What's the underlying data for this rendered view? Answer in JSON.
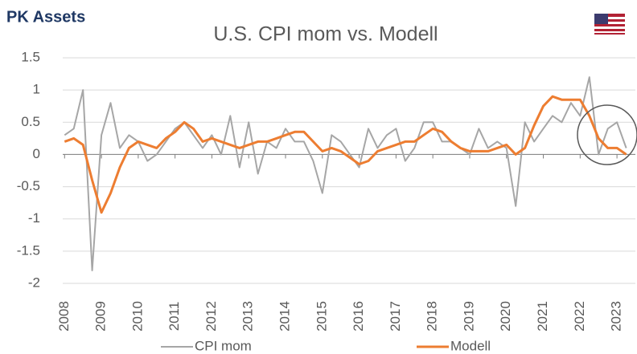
{
  "brand": "PK Assets",
  "chart_data": {
    "type": "line",
    "title": "U.S. CPI mom  vs.  Modell",
    "x": [
      2008,
      2008.25,
      2008.5,
      2008.75,
      2009,
      2009.25,
      2009.5,
      2009.75,
      2010,
      2010.25,
      2010.5,
      2010.75,
      2011,
      2011.25,
      2011.5,
      2011.75,
      2012,
      2012.25,
      2012.5,
      2012.75,
      2013,
      2013.25,
      2013.5,
      2013.75,
      2014,
      2014.25,
      2014.5,
      2014.75,
      2015,
      2015.25,
      2015.5,
      2015.75,
      2016,
      2016.25,
      2016.5,
      2016.75,
      2017,
      2017.25,
      2017.5,
      2017.75,
      2018,
      2018.25,
      2018.5,
      2018.75,
      2019,
      2019.25,
      2019.5,
      2019.75,
      2020,
      2020.25,
      2020.5,
      2020.75,
      2021,
      2021.25,
      2021.5,
      2021.75,
      2022,
      2022.25,
      2022.5,
      2022.75,
      2023,
      2023.25
    ],
    "series": [
      {
        "name": "CPI mom",
        "color": "#a6a6a6",
        "width": 2,
        "values": [
          0.3,
          0.4,
          1.0,
          -1.8,
          0.3,
          0.8,
          0.1,
          0.3,
          0.2,
          -0.1,
          0.0,
          0.2,
          0.4,
          0.5,
          0.3,
          0.1,
          0.3,
          0.0,
          0.6,
          -0.2,
          0.5,
          -0.3,
          0.2,
          0.1,
          0.4,
          0.2,
          0.2,
          -0.1,
          -0.6,
          0.3,
          0.2,
          0.0,
          -0.2,
          0.4,
          0.1,
          0.3,
          0.4,
          -0.1,
          0.1,
          0.5,
          0.5,
          0.2,
          0.2,
          0.1,
          0.0,
          0.4,
          0.1,
          0.2,
          0.1,
          -0.8,
          0.5,
          0.2,
          0.4,
          0.6,
          0.5,
          0.8,
          0.6,
          1.2,
          0.0,
          0.4,
          0.5,
          0.1
        ]
      },
      {
        "name": "Modell",
        "color": "#ed7d31",
        "width": 3,
        "values": [
          0.2,
          0.25,
          0.15,
          -0.4,
          -0.9,
          -0.6,
          -0.2,
          0.1,
          0.2,
          0.15,
          0.1,
          0.25,
          0.35,
          0.5,
          0.4,
          0.2,
          0.25,
          0.2,
          0.15,
          0.1,
          0.15,
          0.2,
          0.2,
          0.25,
          0.3,
          0.35,
          0.35,
          0.2,
          0.05,
          0.1,
          0.05,
          -0.05,
          -0.15,
          -0.1,
          0.05,
          0.1,
          0.15,
          0.2,
          0.2,
          0.3,
          0.4,
          0.35,
          0.2,
          0.1,
          0.05,
          0.05,
          0.05,
          0.1,
          0.15,
          0.0,
          0.1,
          0.45,
          0.75,
          0.9,
          0.85,
          0.85,
          0.85,
          0.6,
          0.25,
          0.1,
          0.1,
          0.0
        ]
      }
    ],
    "xlim": [
      2007.95,
      2023.5
    ],
    "xticks": [
      2008,
      2009,
      2010,
      2011,
      2012,
      2013,
      2014,
      2015,
      2016,
      2017,
      2018,
      2019,
      2020,
      2021,
      2022,
      2023
    ],
    "ylim": [
      -2,
      1.5
    ],
    "yticks": [
      1.5,
      1,
      0.5,
      0,
      -0.5,
      -1,
      -1.5,
      -2
    ],
    "grid": true,
    "legend": "bottom"
  }
}
